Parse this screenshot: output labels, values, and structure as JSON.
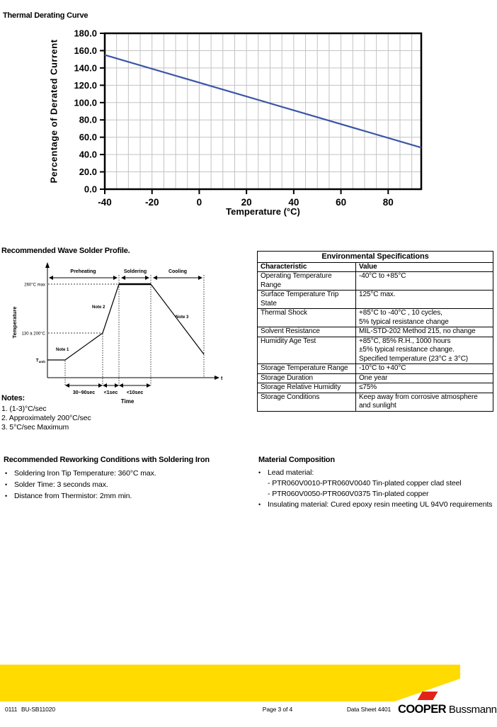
{
  "derating_section": {
    "title": "Thermal Derating Curve"
  },
  "solder_section": {
    "title": "Recommended Wave Solder Profile."
  },
  "chart_data": [
    {
      "type": "line",
      "title": "Thermal Derating Curve",
      "xlabel": "Temperature (°C)",
      "ylabel": "Percentage of Derated Current",
      "xlim": [
        -40,
        94
      ],
      "ylim": [
        0,
        180
      ],
      "x_ticks": [
        -40,
        -20,
        0,
        20,
        40,
        60,
        80
      ],
      "y_ticks": [
        0,
        20,
        40,
        60,
        80,
        100,
        120,
        140,
        160,
        180
      ],
      "x_minor_step": 5,
      "grid": true,
      "grid_color": "#c3c3c3",
      "line_color": "#3a55a8",
      "series": [
        {
          "name": "Percentage of derated current vs temperature",
          "x": [
            -40,
            94
          ],
          "y": [
            155,
            48
          ]
        }
      ]
    },
    {
      "type": "line",
      "title": "Recommended Wave Solder Profile.",
      "xlabel": "Time",
      "ylabel": "Temperature",
      "t_label": "t",
      "phases": [
        "Preheating",
        "Soldering",
        "Cooling"
      ],
      "levels": [
        "260°C max",
        "130 à 200°C",
        "Tamb"
      ],
      "durations": [
        "30~90sec",
        "<1sec",
        "<10sec"
      ],
      "note_markers": [
        "Note 1",
        "Note 2",
        "Note 3"
      ],
      "segments": [
        {
          "phase": "ambient",
          "temp": "Tamb"
        },
        {
          "phase": "preheat ramp",
          "note": "Note 1",
          "duration": "30~90sec",
          "to": "130 à 200°C"
        },
        {
          "phase": "fast ramp",
          "note": "Note 2",
          "duration": "<1sec",
          "to": "260°C max"
        },
        {
          "phase": "soldering",
          "duration": "<10sec",
          "temp": "260°C max"
        },
        {
          "phase": "cooling",
          "note": "Note 3"
        }
      ]
    }
  ],
  "notes": {
    "heading": "Notes:",
    "items": [
      "1. (1-3)°C/sec",
      "2. Approximately 200°C/sec",
      "3. 5°C/sec Maximum"
    ]
  },
  "env_table": {
    "title": "Environmental Specifications",
    "col_headers": [
      "Characteristic",
      "Value"
    ],
    "rows": [
      {
        "c": "Operating Temperature Range",
        "v": "-40°C to +85°C"
      },
      {
        "c": "Surface Temperature Trip State",
        "v": "125°C max."
      },
      {
        "c": "Thermal Shock",
        "v": "+85°C  to -40°C , 10 cycles,\n5% typical resistance change"
      },
      {
        "c": "Solvent Resistance",
        "v": "MIL-STD-202 Method 215, no change"
      },
      {
        "c": "Humidity Age Test",
        "v": "+85°C, 85% R.H., 1000 hours\n±5% typical resistance change.\nSpecified temperature (23°C ± 3°C)"
      },
      {
        "c": "Storage Temperature Range",
        "v": "-10°C to +40°C"
      },
      {
        "c": "Storage Duration",
        "v": "One year"
      },
      {
        "c": "Storage Relative Humidity",
        "v": "≤75%"
      },
      {
        "c": "Storage Conditions",
        "v": "Keep away from corrosive atmosphere and sunlight"
      }
    ]
  },
  "reworking": {
    "heading": "Recommended Reworking Conditions with Soldering Iron",
    "bullets": [
      "Soldering Iron Tip Temperature: 360°C max.",
      "Solder Time: 3 seconds max.",
      "Distance from Thermistor: 2mm min."
    ]
  },
  "material": {
    "heading": "Material Composition",
    "lines": [
      {
        "bullet": true,
        "text": "Lead material:"
      },
      {
        "bullet": false,
        "text": "- PTR060V0010-PTR060V0040 Tin-plated copper clad steel"
      },
      {
        "bullet": false,
        "text": "- PTR060V0050-PTR060V0375 Tin-plated copper"
      },
      {
        "bullet": true,
        "text": "Insulating material: Cured epoxy resin meeting UL 94V0 requirements"
      }
    ]
  },
  "footer": {
    "left_code": "0111",
    "left_doc": "BU-SB11020",
    "center": "Page 3 of 4",
    "right": "Data Sheet 4401",
    "brand_bold": "COOPER",
    "brand_light": "Bussmann",
    "bar_color": "#ffdb00",
    "logo_red": "#e2231a"
  }
}
